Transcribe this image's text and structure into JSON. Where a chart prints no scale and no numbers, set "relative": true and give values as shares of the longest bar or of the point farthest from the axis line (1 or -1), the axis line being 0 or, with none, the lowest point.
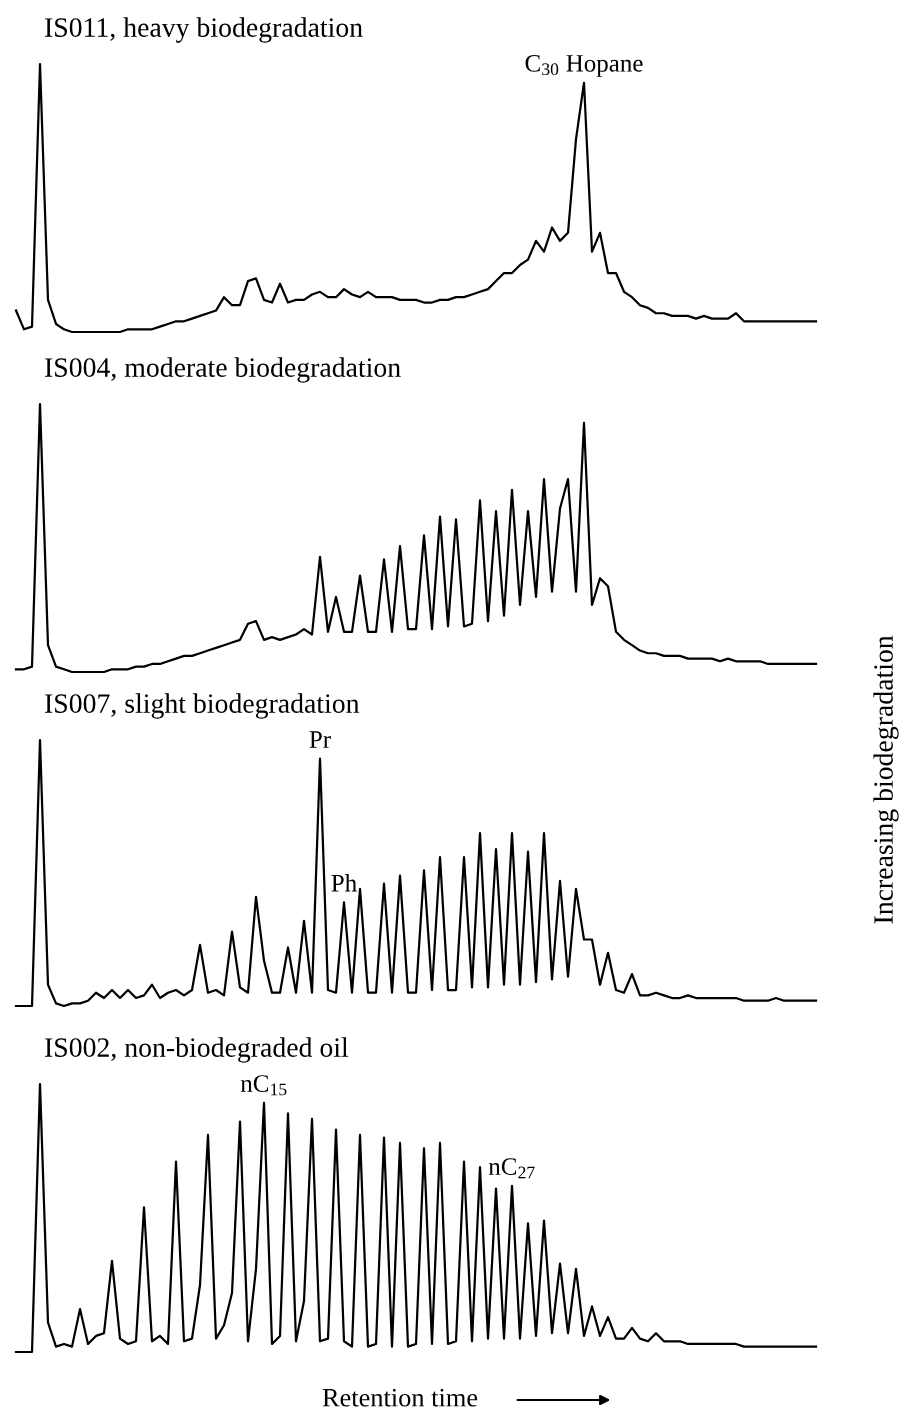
{
  "chart_data": [
    {
      "type": "line",
      "title": "IS011, heavy biodegradation",
      "relative": true,
      "categories": [
        null,
        null,
        null,
        null,
        null,
        null,
        null,
        null,
        null,
        null,
        null,
        null,
        null,
        null,
        null,
        null,
        null,
        null,
        null,
        null,
        null,
        null,
        null,
        null,
        null,
        null,
        null,
        null,
        null,
        null,
        null,
        null,
        null,
        null,
        null,
        null,
        null,
        null,
        null,
        null,
        null,
        null,
        null,
        null,
        null,
        null,
        null,
        null,
        null,
        null,
        null,
        null,
        null,
        null,
        null,
        null,
        null,
        null,
        null,
        null,
        null,
        null,
        null,
        null,
        null,
        null,
        null,
        null,
        null,
        null,
        null,
        null,
        null,
        null,
        null,
        null,
        null,
        null,
        null,
        null,
        null,
        null,
        null,
        null,
        null,
        null,
        null,
        null,
        null,
        null,
        null,
        null,
        null,
        null,
        null,
        null,
        null,
        null,
        null,
        null,
        null
      ],
      "series": [
        {
          "color": "#000000",
          "values": [
            0.08,
            0.01,
            0.02,
            1,
            0.12,
            0.03,
            0.01,
            0,
            0,
            0,
            0,
            0,
            0,
            0,
            0.01,
            0.01,
            0.01,
            0.01,
            0.02,
            0.03,
            0.04,
            0.04,
            0.05,
            0.06,
            0.07,
            0.08,
            0.13,
            0.1,
            0.1,
            0.19,
            0.2,
            0.12,
            0.11,
            0.18,
            0.11,
            0.12,
            0.12,
            0.14,
            0.15,
            0.13,
            0.13,
            0.16,
            0.14,
            0.13,
            0.15,
            0.13,
            0.13,
            0.13,
            0.12,
            0.12,
            0.12,
            0.11,
            0.11,
            0.12,
            0.12,
            0.13,
            0.13,
            0.14,
            0.15,
            0.16,
            0.19,
            0.22,
            0.22,
            0.25,
            0.27,
            0.34,
            0.3,
            0.39,
            0.34,
            0.37,
            0.72,
            0.93,
            0.3,
            0.37,
            0.22,
            0.22,
            0.15,
            0.13,
            0.1,
            0.09,
            0.07,
            0.07,
            0.06,
            0.06,
            0.06,
            0.05,
            0.06,
            0.05,
            0.05,
            0.05,
            0.07,
            0.04,
            0.04,
            0.04,
            0.04,
            0.04,
            0.04,
            0.04,
            0.04,
            0.04,
            0.04
          ]
        }
      ],
      "annotations": [
        {
          "text": "C$_{30}$ Hopane",
          "y": 0.93
        }
      ]
    },
    {
      "type": "line",
      "title": "IS004, moderate biodegradation",
      "relative": true,
      "categories": [
        null,
        null,
        null,
        null,
        null,
        null,
        null,
        null,
        null,
        null,
        null,
        null,
        null,
        null,
        null,
        null,
        null,
        null,
        null,
        null,
        null,
        null,
        null,
        null,
        null,
        null,
        null,
        null,
        null,
        null,
        null,
        null,
        null,
        null,
        null,
        null,
        null,
        null,
        null,
        null,
        null,
        null,
        null,
        null,
        null,
        null,
        null,
        null,
        null,
        null,
        null,
        null,
        null,
        null,
        null,
        null,
        null,
        null,
        null,
        null,
        null,
        null,
        null,
        null,
        null,
        null,
        null,
        null,
        null,
        null,
        null,
        null,
        null,
        null,
        null,
        null,
        null,
        null,
        null,
        null,
        null,
        null,
        null,
        null,
        null,
        null,
        null,
        null,
        null,
        null,
        null,
        null,
        null,
        null,
        null,
        null,
        null,
        null,
        null,
        null,
        null
      ],
      "series": [
        {
          "color": "#000000",
          "values": [
            0.01,
            0.01,
            0.02,
            1,
            0.1,
            0.02,
            0.01,
            0,
            0,
            0,
            0,
            0,
            0.01,
            0.01,
            0.01,
            0.02,
            0.02,
            0.03,
            0.03,
            0.04,
            0.05,
            0.06,
            0.06,
            0.07,
            0.08,
            0.09,
            0.1,
            0.11,
            0.12,
            0.18,
            0.19,
            0.12,
            0.13,
            0.12,
            0.13,
            0.14,
            0.16,
            0.14,
            0.43,
            0.15,
            0.28,
            0.15,
            0.15,
            0.36,
            0.15,
            0.15,
            0.42,
            0.15,
            0.47,
            0.16,
            0.16,
            0.51,
            0.16,
            0.58,
            0.17,
            0.57,
            0.17,
            0.18,
            0.64,
            0.19,
            0.6,
            0.21,
            0.68,
            0.25,
            0.6,
            0.28,
            0.72,
            0.3,
            0.61,
            0.72,
            0.3,
            0.93,
            0.25,
            0.35,
            0.32,
            0.15,
            0.12,
            0.1,
            0.08,
            0.07,
            0.07,
            0.06,
            0.06,
            0.06,
            0.05,
            0.05,
            0.05,
            0.05,
            0.04,
            0.05,
            0.04,
            0.04,
            0.04,
            0.04,
            0.03,
            0.03,
            0.03,
            0.03,
            0.03,
            0.03,
            0.03
          ]
        }
      ]
    },
    {
      "type": "line",
      "title": "IS007, slight biodegradation",
      "relative": true,
      "categories": [
        null,
        null,
        null,
        null,
        null,
        null,
        null,
        null,
        null,
        null,
        null,
        null,
        null,
        null,
        null,
        null,
        null,
        null,
        null,
        null,
        null,
        null,
        null,
        null,
        null,
        null,
        null,
        null,
        null,
        null,
        null,
        null,
        null,
        null,
        null,
        null,
        null,
        null,
        null,
        null,
        null,
        null,
        null,
        null,
        null,
        null,
        null,
        null,
        null,
        null,
        null,
        null,
        null,
        null,
        null,
        null,
        null,
        null,
        null,
        null,
        null,
        null,
        null,
        null,
        null,
        null,
        null,
        null,
        null,
        null,
        null,
        null,
        null,
        null,
        null,
        null,
        null,
        null,
        null,
        null,
        null,
        null,
        null,
        null,
        null,
        null,
        null,
        null,
        null,
        null,
        null,
        null,
        null,
        null,
        null,
        null,
        null,
        null,
        null,
        null,
        null
      ],
      "series": [
        {
          "color": "#000000",
          "values": [
            0,
            0,
            0,
            1,
            0.08,
            0.01,
            0,
            0.01,
            0.01,
            0.02,
            0.05,
            0.03,
            0.06,
            0.03,
            0.06,
            0.03,
            0.04,
            0.08,
            0.03,
            0.05,
            0.06,
            0.04,
            0.06,
            0.23,
            0.05,
            0.06,
            0.04,
            0.28,
            0.07,
            0.05,
            0.41,
            0.17,
            0.05,
            0.05,
            0.22,
            0.05,
            0.32,
            0.05,
            0.93,
            0.06,
            0.05,
            0.39,
            0.05,
            0.44,
            0.05,
            0.05,
            0.46,
            0.05,
            0.49,
            0.05,
            0.05,
            0.51,
            0.06,
            0.56,
            0.06,
            0.06,
            0.56,
            0.07,
            0.65,
            0.07,
            0.59,
            0.08,
            0.65,
            0.08,
            0.58,
            0.09,
            0.65,
            0.1,
            0.47,
            0.11,
            0.44,
            0.25,
            0.25,
            0.08,
            0.2,
            0.06,
            0.05,
            0.12,
            0.04,
            0.04,
            0.05,
            0.04,
            0.03,
            0.03,
            0.04,
            0.03,
            0.03,
            0.03,
            0.03,
            0.03,
            0.03,
            0.02,
            0.02,
            0.02,
            0.02,
            0.03,
            0.02,
            0.02,
            0.02,
            0.02,
            0.02
          ]
        }
      ],
      "annotations": [
        {
          "text": "Pr",
          "y": 0.93
        },
        {
          "text": "Ph",
          "y": 0.39
        },
        "Increasing biodegradation"
      ]
    },
    {
      "type": "line",
      "title": "IS002, non-biodegraded oil",
      "relative": true,
      "xlabel": "Retention time",
      "categories": [
        null,
        null,
        null,
        null,
        null,
        null,
        null,
        null,
        null,
        null,
        null,
        null,
        null,
        null,
        null,
        null,
        null,
        null,
        null,
        null,
        null,
        null,
        null,
        null,
        null,
        null,
        null,
        null,
        null,
        null,
        null,
        null,
        null,
        null,
        null,
        null,
        null,
        null,
        null,
        null,
        null,
        null,
        null,
        null,
        null,
        null,
        null,
        null,
        null,
        null,
        null,
        null,
        null,
        null,
        null,
        null,
        null,
        null,
        null,
        null,
        null,
        null,
        null,
        null,
        null,
        null,
        null,
        null,
        null,
        null,
        null,
        null,
        null,
        null,
        null,
        null,
        null,
        null,
        null,
        null,
        null,
        null,
        null,
        null,
        null,
        null,
        null,
        null,
        null,
        null,
        null,
        null,
        null,
        null,
        null,
        null,
        null,
        null,
        null,
        null,
        null
      ],
      "series": [
        {
          "color": "#000000",
          "values": [
            0,
            0,
            0,
            1,
            0.11,
            0.02,
            0.03,
            0.02,
            0.16,
            0.03,
            0.06,
            0.07,
            0.34,
            0.05,
            0.03,
            0.04,
            0.54,
            0.04,
            0.06,
            0.03,
            0.71,
            0.04,
            0.05,
            0.25,
            0.81,
            0.05,
            0.1,
            0.22,
            0.86,
            0.04,
            0.31,
            0.93,
            0.03,
            0.06,
            0.89,
            0.04,
            0.19,
            0.87,
            0.04,
            0.05,
            0.83,
            0.04,
            0.02,
            0.81,
            0.02,
            0.03,
            0.8,
            0.02,
            0.78,
            0.02,
            0.03,
            0.76,
            0.03,
            0.78,
            0.03,
            0.04,
            0.71,
            0.04,
            0.69,
            0.05,
            0.61,
            0.05,
            0.62,
            0.05,
            0.48,
            0.06,
            0.49,
            0.07,
            0.33,
            0.07,
            0.31,
            0.06,
            0.17,
            0.06,
            0.13,
            0.05,
            0.05,
            0.09,
            0.05,
            0.04,
            0.07,
            0.04,
            0.04,
            0.04,
            0.03,
            0.03,
            0.03,
            0.03,
            0.03,
            0.03,
            0.03,
            0.02,
            0.02,
            0.02,
            0.02,
            0.02,
            0.02,
            0.02,
            0.02,
            0.02,
            0.02
          ]
        }
      ],
      "annotations": [
        {
          "text": "nC$_{15}$",
          "y": 0.93
        },
        {
          "text": "nC$_{27}$",
          "y": 0.62
        }
      ]
    }
  ]
}
